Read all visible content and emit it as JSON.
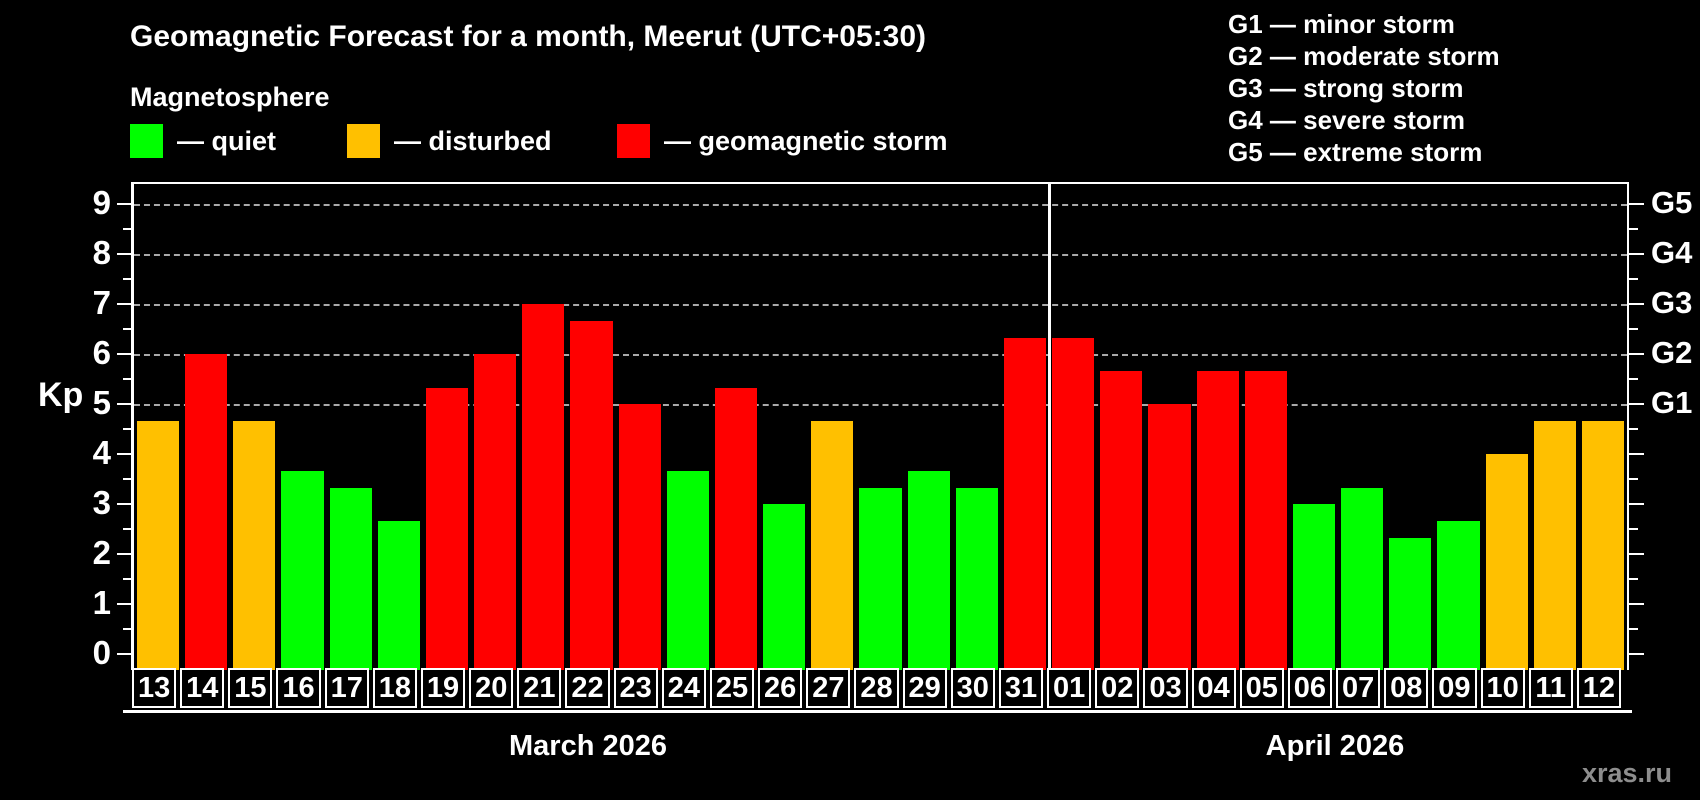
{
  "header": {
    "title": "Geomagnetic Forecast for a month, Meerut (UTC+05:30)",
    "subtitle": "Magnetosphere"
  },
  "legend": {
    "items": [
      {
        "key": "quiet",
        "label": "— quiet",
        "color": "#00ff00"
      },
      {
        "key": "disturbed",
        "label": "— disturbed",
        "color": "#ffc000"
      },
      {
        "key": "storm",
        "label": "— geomagnetic storm",
        "color": "#ff0000"
      }
    ]
  },
  "g_scale": {
    "lines": [
      "G1 — minor storm",
      "G2 — moderate storm",
      "G3 — strong storm",
      "G4 — severe storm",
      "G5 — extreme storm"
    ]
  },
  "watermark": "xras.ru",
  "chart_data": {
    "type": "bar",
    "title": "Geomagnetic Forecast for a month, Meerut (UTC+05:30)",
    "ylabel": "Kp",
    "ylim": [
      0,
      9.4
    ],
    "grid": "dashed horizontal at Kp 5-9",
    "legend_position": "top",
    "yticks_left": [
      0,
      1,
      2,
      3,
      4,
      5,
      6,
      7,
      8,
      9
    ],
    "gridlines_at": [
      5,
      6,
      7,
      8,
      9
    ],
    "right_axis": [
      {
        "kp": 5,
        "label": "G1"
      },
      {
        "kp": 6,
        "label": "G2"
      },
      {
        "kp": 7,
        "label": "G3"
      },
      {
        "kp": 8,
        "label": "G4"
      },
      {
        "kp": 9,
        "label": "G5"
      }
    ],
    "months": [
      {
        "label": "March 2026",
        "start_index": 0,
        "days": 19
      },
      {
        "label": "April 2026",
        "start_index": 19,
        "days": 12
      }
    ],
    "legend_colors": {
      "quiet": "#00ff00",
      "disturbed": "#ffc000",
      "storm": "#ff0000"
    },
    "points": [
      {
        "day": "13",
        "kp": 4.67,
        "level": "disturbed"
      },
      {
        "day": "14",
        "kp": 6.0,
        "level": "storm"
      },
      {
        "day": "15",
        "kp": 4.67,
        "level": "disturbed"
      },
      {
        "day": "16",
        "kp": 3.67,
        "level": "quiet"
      },
      {
        "day": "17",
        "kp": 3.33,
        "level": "quiet"
      },
      {
        "day": "18",
        "kp": 2.67,
        "level": "quiet"
      },
      {
        "day": "19",
        "kp": 5.33,
        "level": "storm"
      },
      {
        "day": "20",
        "kp": 6.0,
        "level": "storm"
      },
      {
        "day": "21",
        "kp": 7.0,
        "level": "storm"
      },
      {
        "day": "22",
        "kp": 6.67,
        "level": "storm"
      },
      {
        "day": "23",
        "kp": 5.0,
        "level": "storm"
      },
      {
        "day": "24",
        "kp": 3.67,
        "level": "quiet"
      },
      {
        "day": "25",
        "kp": 5.33,
        "level": "storm"
      },
      {
        "day": "26",
        "kp": 3.0,
        "level": "quiet"
      },
      {
        "day": "27",
        "kp": 4.67,
        "level": "disturbed"
      },
      {
        "day": "28",
        "kp": 3.33,
        "level": "quiet"
      },
      {
        "day": "29",
        "kp": 3.67,
        "level": "quiet"
      },
      {
        "day": "30",
        "kp": 3.33,
        "level": "quiet"
      },
      {
        "day": "31",
        "kp": 6.33,
        "level": "storm"
      },
      {
        "day": "01",
        "kp": 6.33,
        "level": "storm"
      },
      {
        "day": "02",
        "kp": 5.67,
        "level": "storm"
      },
      {
        "day": "03",
        "kp": 5.0,
        "level": "storm"
      },
      {
        "day": "04",
        "kp": 5.67,
        "level": "storm"
      },
      {
        "day": "05",
        "kp": 5.67,
        "level": "storm"
      },
      {
        "day": "06",
        "kp": 3.0,
        "level": "quiet"
      },
      {
        "day": "07",
        "kp": 3.33,
        "level": "quiet"
      },
      {
        "day": "08",
        "kp": 2.33,
        "level": "quiet"
      },
      {
        "day": "09",
        "kp": 2.67,
        "level": "quiet"
      },
      {
        "day": "10",
        "kp": 4.0,
        "level": "disturbed"
      },
      {
        "day": "11",
        "kp": 4.67,
        "level": "disturbed"
      },
      {
        "day": "12",
        "kp": 4.67,
        "level": "disturbed"
      }
    ]
  }
}
